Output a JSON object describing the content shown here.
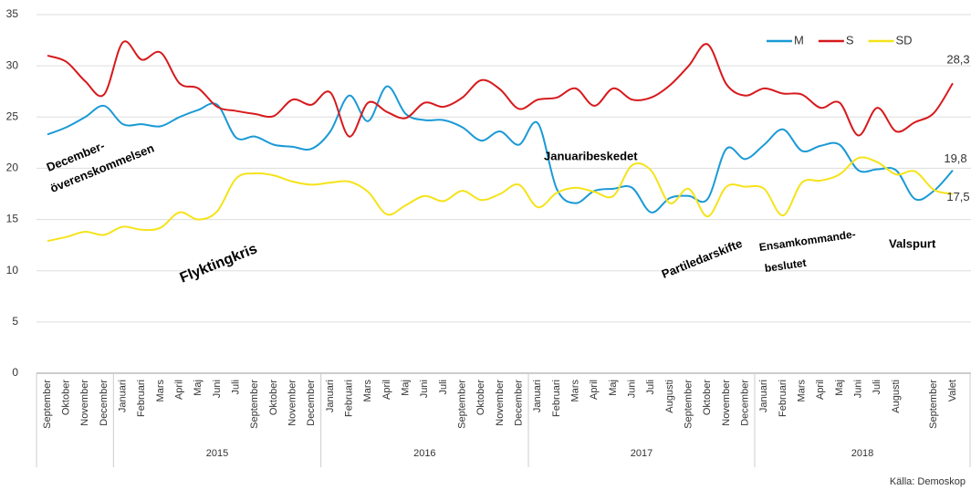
{
  "chart_data": {
    "type": "line",
    "categories": [
      "September",
      "Oktober",
      "November",
      "December",
      "Januari",
      "Februari",
      "Mars",
      "April",
      "Maj",
      "Juni",
      "Juli",
      "September",
      "Oktober",
      "November",
      "December",
      "Januari",
      "Februari",
      "Mars",
      "April",
      "Maj",
      "Juni",
      "Juli",
      "September",
      "Oktober",
      "November",
      "December",
      "Januari",
      "Februari",
      "Mars",
      "April",
      "Maj",
      "Juni",
      "Juli",
      "Augusti",
      "September",
      "Oktober",
      "November",
      "December",
      "Januari",
      "Februari",
      "Mars",
      "April",
      "Maj",
      "Juni",
      "Juli",
      "Augusti",
      null,
      "September",
      "Valet"
    ],
    "year_groups": [
      {
        "label": null,
        "count": 4
      },
      {
        "label": "2015",
        "count": 11
      },
      {
        "label": "2016",
        "count": 11
      },
      {
        "label": "2017",
        "count": 12
      },
      {
        "label": "2018",
        "count": 11
      }
    ],
    "series": [
      {
        "name": "M",
        "color": "#1a9ad6",
        "values": [
          23.3,
          24.0,
          25.0,
          26.1,
          24.3,
          24.3,
          24.1,
          25.0,
          25.7,
          26.2,
          23.0,
          23.1,
          22.3,
          22.1,
          21.9,
          23.6,
          27.1,
          24.6,
          28.0,
          25.3,
          24.7,
          24.7,
          24.0,
          22.7,
          23.6,
          22.3,
          24.4,
          18.0,
          16.6,
          17.8,
          18.0,
          18.1,
          15.7,
          17.1,
          17.3,
          17.0,
          21.9,
          20.9,
          22.3,
          23.8,
          21.7,
          22.2,
          22.3,
          19.8,
          19.9,
          19.8,
          17.0,
          17.8,
          19.8
        ],
        "value_labels": [
          null,
          null,
          null,
          null,
          null,
          null,
          null,
          null,
          null,
          null,
          null,
          null,
          null,
          null,
          null,
          null,
          null,
          null,
          null,
          null,
          null,
          null,
          null,
          null,
          null,
          null,
          null,
          null,
          null,
          null,
          null,
          null,
          null,
          null,
          null,
          null,
          null,
          null,
          null,
          null,
          null,
          null,
          null,
          null,
          null,
          null,
          null,
          null,
          "19,8"
        ]
      },
      {
        "name": "S",
        "color": "#d7191c",
        "values": [
          31.0,
          30.4,
          28.5,
          27.2,
          32.3,
          30.6,
          31.3,
          28.3,
          27.8,
          26.0,
          25.6,
          25.3,
          25.1,
          26.7,
          26.2,
          27.4,
          23.1,
          26.4,
          25.5,
          24.9,
          26.4,
          26.0,
          26.9,
          28.6,
          27.7,
          25.8,
          26.7,
          26.9,
          27.8,
          26.1,
          27.8,
          26.7,
          26.9,
          28.1,
          30.0,
          32.1,
          28.2,
          27.1,
          27.8,
          27.3,
          27.2,
          25.9,
          26.4,
          23.2,
          25.9,
          23.6,
          24.5,
          25.4,
          28.3
        ],
        "value_labels": [
          null,
          null,
          null,
          null,
          null,
          null,
          null,
          null,
          null,
          null,
          null,
          null,
          null,
          null,
          null,
          null,
          null,
          null,
          null,
          null,
          null,
          null,
          null,
          null,
          null,
          null,
          null,
          null,
          null,
          null,
          null,
          null,
          null,
          null,
          null,
          null,
          null,
          null,
          null,
          null,
          null,
          null,
          null,
          null,
          null,
          null,
          null,
          null,
          "28,3"
        ]
      },
      {
        "name": "SD",
        "color": "#f5e31a",
        "values": [
          12.9,
          13.3,
          13.8,
          13.5,
          14.3,
          14.0,
          14.2,
          15.7,
          15.0,
          15.8,
          19.0,
          19.5,
          19.3,
          18.7,
          18.4,
          18.6,
          18.7,
          17.7,
          15.5,
          16.4,
          17.3,
          16.8,
          17.8,
          16.9,
          17.5,
          18.4,
          16.2,
          17.6,
          18.1,
          17.7,
          17.3,
          20.3,
          19.8,
          16.6,
          18.0,
          15.3,
          18.2,
          18.2,
          18.0,
          15.4,
          18.6,
          18.8,
          19.4,
          21.0,
          20.6,
          19.4,
          19.7,
          17.9,
          17.5
        ],
        "value_labels": [
          null,
          null,
          null,
          null,
          null,
          null,
          null,
          null,
          null,
          null,
          null,
          null,
          null,
          null,
          null,
          null,
          null,
          null,
          null,
          null,
          null,
          null,
          null,
          null,
          null,
          null,
          null,
          null,
          null,
          null,
          null,
          null,
          null,
          null,
          null,
          null,
          null,
          null,
          null,
          null,
          null,
          null,
          null,
          null,
          null,
          null,
          null,
          null,
          "17,5"
        ]
      }
    ],
    "ylim": [
      0,
      35
    ],
    "yticks": [
      0,
      5,
      10,
      15,
      20,
      25,
      30,
      35
    ],
    "grid": true,
    "legend": "top-right",
    "annotations": [
      "December-",
      "överenskommelsen",
      "Flyktingkris",
      "Januaribeskedet",
      "Partiledarskifte",
      "Ensamkommande-",
      "beslutet",
      "Valspurt"
    ],
    "source": "Källa: Demoskop"
  }
}
